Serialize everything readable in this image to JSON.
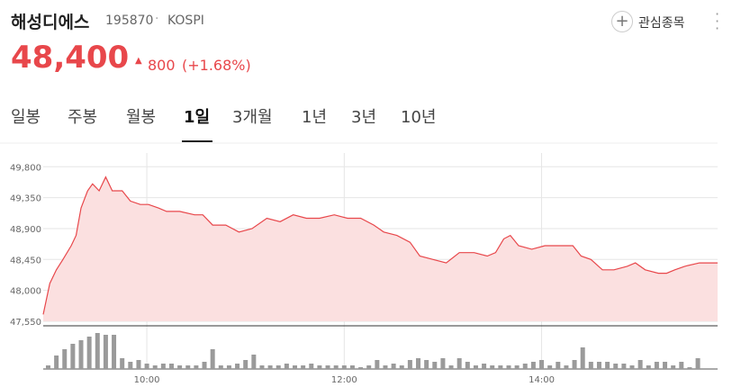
{
  "header": {
    "name": "해성디에스",
    "code": "195870",
    "market": "KOSPI",
    "price": "48,400",
    "change": "800",
    "change_pct": "(+1.68%)",
    "watch_button": "관심종목"
  },
  "tabs": {
    "items": [
      "일봉",
      "주봉",
      "월봉",
      "1일",
      "3개월",
      "1년",
      "3년",
      "10년"
    ],
    "active": 3
  },
  "chart_data": {
    "type": "line",
    "x": [
      537,
      541,
      545,
      549,
      554,
      557,
      560,
      564,
      567,
      571,
      575,
      579,
      585,
      590,
      596,
      601,
      607,
      612,
      620,
      629,
      634,
      640,
      648,
      656,
      664,
      673,
      681,
      689,
      697,
      705,
      714,
      722,
      730,
      738,
      744,
      752,
      760,
      766,
      774,
      782,
      790,
      799,
      807,
      812,
      817,
      821,
      826,
      834,
      842,
      851,
      859,
      864,
      870,
      877,
      884,
      892,
      897,
      903,
      911,
      916,
      921,
      927,
      936,
      947
    ],
    "series": [
      {
        "name": "해성디에스",
        "color": "#e8474b",
        "fill": "#fbe0e0",
        "values": [
          47650,
          48100,
          48300,
          48450,
          48650,
          48800,
          49200,
          49450,
          49550,
          49450,
          49650,
          49450,
          49450,
          49300,
          49250,
          49250,
          49200,
          49150,
          49150,
          49100,
          49100,
          48950,
          48950,
          48850,
          48900,
          49050,
          49000,
          49100,
          49050,
          49050,
          49100,
          49050,
          49050,
          48950,
          48850,
          48800,
          48700,
          48500,
          48450,
          48400,
          48550,
          48550,
          48500,
          48550,
          48750,
          48800,
          48650,
          48600,
          48650,
          48650,
          48650,
          48500,
          48450,
          48300,
          48300,
          48350,
          48400,
          48300,
          48250,
          48250,
          48300,
          48350,
          48400,
          48400
        ]
      }
    ],
    "xlim": [
      537,
      947
    ],
    "xticks": [
      {
        "value": 600,
        "label": "10:00"
      },
      {
        "value": 720,
        "label": "12:00"
      },
      {
        "value": 840,
        "label": "14:00"
      }
    ],
    "ylim": [
      47550,
      50000
    ],
    "yticks": [
      {
        "value": 47550,
        "label": "47,550"
      },
      {
        "value": 48000,
        "label": "48,000"
      },
      {
        "value": 48450,
        "label": "48,450"
      },
      {
        "value": 48900,
        "label": "48,900"
      },
      {
        "value": 49350,
        "label": "49,350"
      },
      {
        "value": 49800,
        "label": "49,800"
      }
    ],
    "grid": true,
    "volume": {
      "color": "#9a9a9a",
      "ylim": [
        0,
        45
      ],
      "x": [
        540,
        545,
        550,
        555,
        560,
        565,
        570,
        575,
        580,
        585,
        590,
        595,
        600,
        605,
        610,
        615,
        620,
        625,
        630,
        635,
        640,
        645,
        650,
        655,
        660,
        665,
        670,
        675,
        680,
        685,
        690,
        695,
        700,
        705,
        710,
        715,
        720,
        725,
        730,
        735,
        740,
        745,
        750,
        755,
        760,
        765,
        770,
        775,
        780,
        785,
        790,
        795,
        800,
        805,
        810,
        815,
        820,
        825,
        830,
        835,
        840,
        845,
        850,
        855,
        860,
        865,
        870,
        875,
        880,
        885,
        890,
        895,
        900,
        905,
        910,
        915,
        920,
        925,
        930,
        935
      ],
      "values": [
        4,
        15,
        22,
        28,
        32,
        36,
        40,
        38,
        38,
        12,
        8,
        10,
        6,
        4,
        6,
        6,
        4,
        4,
        4,
        8,
        22,
        4,
        4,
        6,
        10,
        16,
        4,
        4,
        4,
        6,
        4,
        4,
        6,
        4,
        4,
        4,
        4,
        4,
        2,
        4,
        10,
        4,
        6,
        4,
        10,
        12,
        10,
        8,
        12,
        4,
        12,
        8,
        4,
        6,
        4,
        4,
        4,
        4,
        6,
        8,
        10,
        4,
        8,
        4,
        10,
        24,
        8,
        8,
        8,
        6,
        6,
        4,
        10,
        4,
        8,
        8,
        4,
        8,
        2,
        12
      ]
    }
  }
}
